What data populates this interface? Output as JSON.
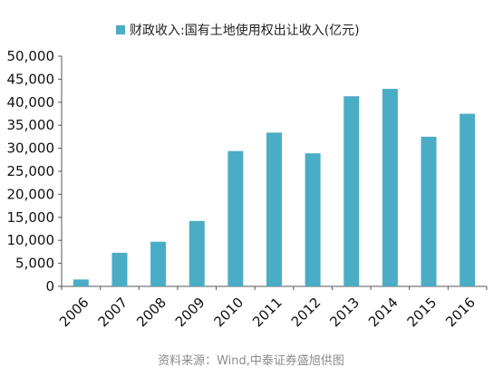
{
  "chart_data": {
    "type": "bar",
    "legend": {
      "entries": [
        "财政收入:国有土地使用权出让收入(亿元)"
      ],
      "placement": "top"
    },
    "categories": [
      "2006",
      "2007",
      "2008",
      "2009",
      "2010",
      "2011",
      "2012",
      "2013",
      "2014",
      "2015",
      "2016"
    ],
    "series": [
      {
        "name": "财政收入:国有土地使用权出让收入(亿元)",
        "values": [
          1500,
          7300,
          9700,
          14200,
          29400,
          33400,
          28900,
          41300,
          42900,
          32500,
          37500
        ],
        "color": "#4BACC6"
      }
    ],
    "ylim": [
      0,
      50000
    ],
    "yticks": [
      "0",
      "5,000",
      "10,000",
      "15,000",
      "20,000",
      "25,000",
      "30,000",
      "35,000",
      "40,000",
      "45,000",
      "50,000"
    ],
    "ytick_values": [
      0,
      5000,
      10000,
      15000,
      20000,
      25000,
      30000,
      35000,
      40000,
      45000,
      50000
    ],
    "grid": false,
    "source": "资料来源：Wind,中泰证券盛旭供图"
  }
}
